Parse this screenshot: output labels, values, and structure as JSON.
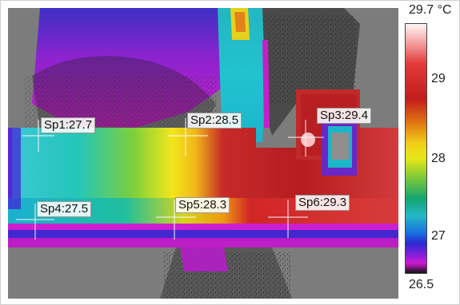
{
  "colorbar": {
    "top_label": "29.7 °C",
    "bottom_label": "26.5",
    "ticks": [
      "29",
      "28",
      "27"
    ]
  },
  "spots": [
    {
      "id": "Sp1",
      "label": "Sp1:27.7"
    },
    {
      "id": "Sp2",
      "label": "Sp2:28.5"
    },
    {
      "id": "Sp3",
      "label": "Sp3:29.4"
    },
    {
      "id": "Sp4",
      "label": "Sp4:27.5"
    },
    {
      "id": "Sp5",
      "label": "Sp5:28.3"
    },
    {
      "id": "Sp6",
      "label": "Sp6:29.3"
    }
  ]
}
